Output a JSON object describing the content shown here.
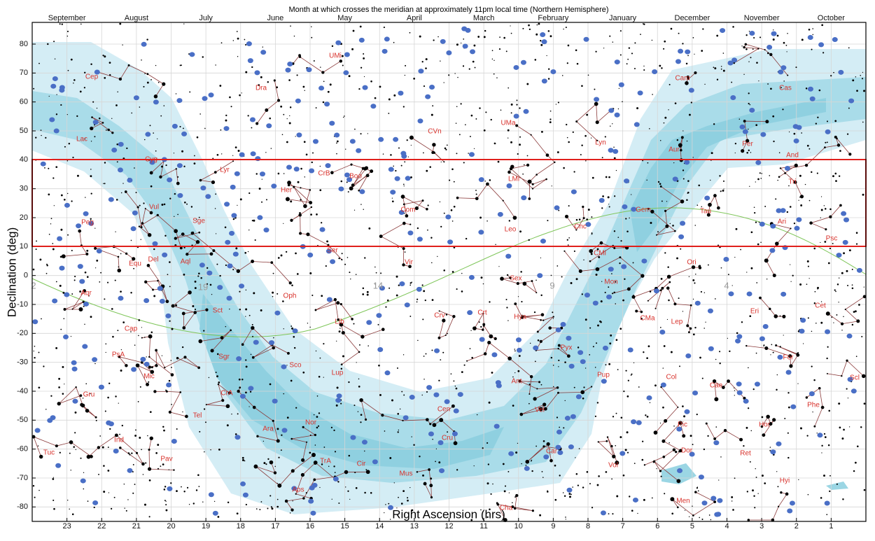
{
  "map": {
    "title": "Month at which crosses the meridian at approximately 11pm local time (Northern Hemisphere)",
    "months": [
      "September",
      "August",
      "July",
      "June",
      "May",
      "April",
      "March",
      "February",
      "January",
      "December",
      "November",
      "October"
    ],
    "xlabel": "Right Ascension (hrs)",
    "ylabel": "Declination (deg)",
    "xlim": [
      24,
      0
    ],
    "ylim": [
      -85,
      87.5
    ],
    "xticks": [
      23,
      22,
      21,
      20,
      19,
      18,
      17,
      16,
      15,
      14,
      13,
      12,
      11,
      10,
      9,
      8,
      7,
      6,
      5,
      4,
      3,
      2,
      1
    ],
    "yticks": [
      80,
      70,
      60,
      50,
      40,
      30,
      20,
      10,
      0,
      -10,
      -20,
      -30,
      -40,
      -50,
      -60,
      -70,
      -80
    ],
    "ecliptic_labels": [
      "2",
      "19",
      "14",
      "9",
      "4"
    ],
    "constellations": [
      "Cep",
      "Lac",
      "Cyg",
      "Vul",
      "Peg",
      "Sge",
      "Lyr",
      "Del",
      "Equ",
      "Aql",
      "Dra",
      "UMi",
      "Her",
      "CrB",
      "Boo",
      "Ser",
      "Com",
      "CVn",
      "UMa",
      "LMi",
      "Leo",
      "Cnc",
      "Lyn",
      "Cam",
      "Aur",
      "Gem",
      "Tau",
      "Per",
      "Cas",
      "And",
      "Tri",
      "Ari",
      "Psc",
      "Aqr",
      "Cap",
      "PsA",
      "Mic",
      "Gru",
      "Ind",
      "Tuc",
      "Pav",
      "Tel",
      "CrA",
      "Sgr",
      "Sct",
      "Oph",
      "Sco",
      "Lib",
      "Lup",
      "Nor",
      "Ara",
      "TrA",
      "Cir",
      "Aps",
      "Vir",
      "Crv",
      "Crt",
      "Sex",
      "Hya",
      "Cen",
      "Cru",
      "Mus",
      "Cha",
      "Car",
      "Vel",
      "Ant",
      "Pyx",
      "Pup",
      "CMi",
      "Mon",
      "CMa",
      "Lep",
      "Col",
      "Pic",
      "Dor",
      "Vol",
      "Men",
      "Ori",
      "Eri",
      "Cet",
      "For",
      "Cae",
      "Hor",
      "Ret",
      "Hyi",
      "Phe",
      "Scl"
    ]
  }
}
